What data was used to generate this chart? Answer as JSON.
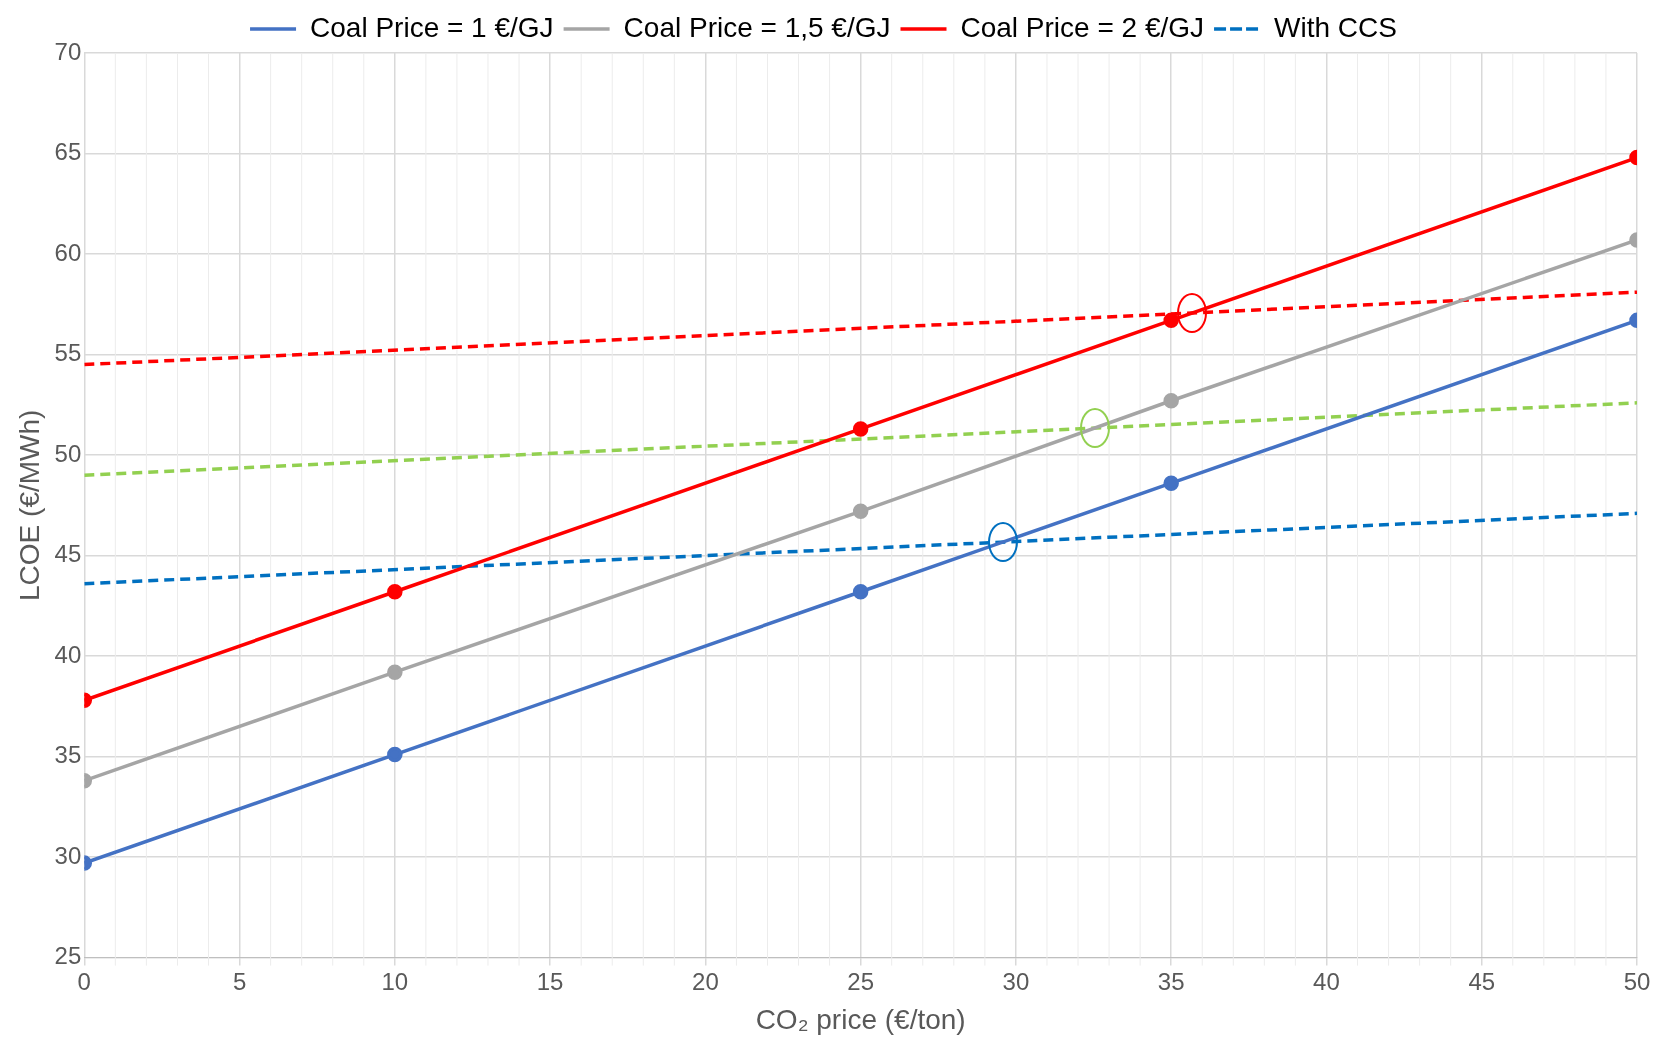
{
  "chart_data": {
    "type": "line",
    "xlabel": "CO₂ price (€/ton)",
    "ylabel": "LCOE (€/MWh)",
    "xlim": [
      0,
      50
    ],
    "xticks": [
      0,
      5,
      10,
      15,
      20,
      25,
      30,
      35,
      40,
      45,
      50
    ],
    "ylim": [
      25,
      70
    ],
    "yticks": [
      25,
      30,
      35,
      40,
      45,
      50,
      55,
      60,
      65,
      70
    ],
    "grid": true,
    "legend": "top",
    "marker": "circle",
    "series": [
      {
        "name": "Coal Price = 1 €/GJ",
        "color": "#4472c4",
        "x": [
          0,
          10,
          25,
          35,
          50
        ],
        "values": [
          29.7,
          35.1,
          43.2,
          48.6,
          56.7
        ]
      },
      {
        "name": "Coal Price = 1,5 €/GJ",
        "color": "#a5a5a5",
        "x": [
          0,
          10,
          25,
          35,
          50
        ],
        "values": [
          33.8,
          39.2,
          47.2,
          52.7,
          60.7
        ]
      },
      {
        "name": "Coal Price = 2 €/GJ",
        "color": "#ff0000",
        "x": [
          0,
          10,
          25,
          35,
          50
        ],
        "values": [
          37.8,
          43.2,
          51.3,
          56.7,
          64.8
        ]
      },
      {
        "name": "With CCS",
        "color": "#0070c0",
        "line_style": "dashed",
        "marker": "none",
        "x": [
          0,
          50
        ],
        "values": [
          43.6,
          47.1
        ]
      },
      {
        "color": "#92d050",
        "line_style": "dashed",
        "marker": "none",
        "x": [
          0,
          50
        ],
        "values": [
          49.0,
          52.6
        ]
      },
      {
        "color": "#ff0000",
        "line_style": "dashed",
        "marker": "none",
        "x": [
          0,
          50
        ],
        "values": [
          54.5,
          58.1
        ]
      }
    ]
  }
}
